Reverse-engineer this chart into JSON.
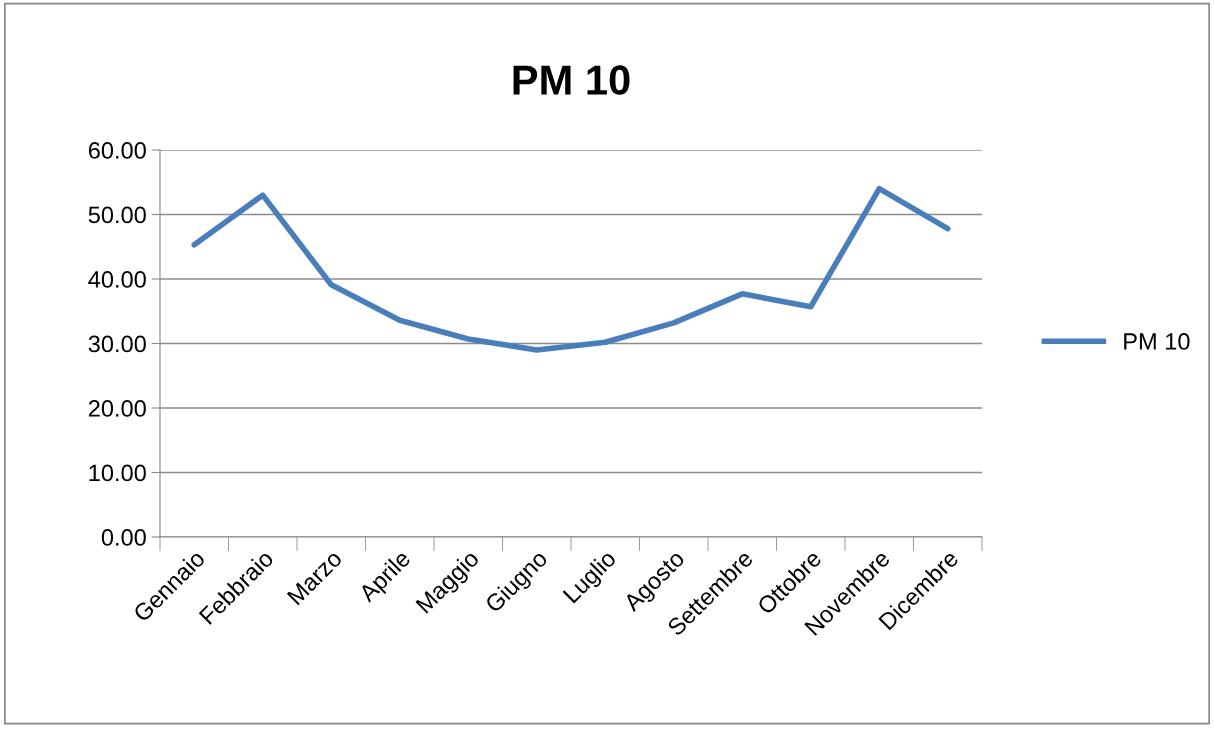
{
  "chart_data": {
    "type": "line",
    "title": "PM 10",
    "categories": [
      "Gennaio",
      "Febbraio",
      "Marzo",
      "Aprile",
      "Maggio",
      "Giugno",
      "Luglio",
      "Agosto",
      "Settembre",
      "Ottobre",
      "Novembre",
      "Dicembre"
    ],
    "series": [
      {
        "name": "PM 10",
        "color": "#4a7ebb",
        "values": [
          45.3,
          53.0,
          39.1,
          33.6,
          30.7,
          29.0,
          30.2,
          33.2,
          37.7,
          35.7,
          54.0,
          47.8
        ]
      }
    ],
    "ylim": [
      0,
      60
    ],
    "yticks": [
      {
        "value": 0,
        "label": "0.00"
      },
      {
        "value": 10,
        "label": "10.00"
      },
      {
        "value": 20,
        "label": "20.00"
      },
      {
        "value": 30,
        "label": "30.00"
      },
      {
        "value": 40,
        "label": "40.00"
      },
      {
        "value": 50,
        "label": "50.00"
      },
      {
        "value": 60,
        "label": "60.00"
      }
    ],
    "grid": "y",
    "legend": "right",
    "marker": "none",
    "line_style": "solid"
  }
}
